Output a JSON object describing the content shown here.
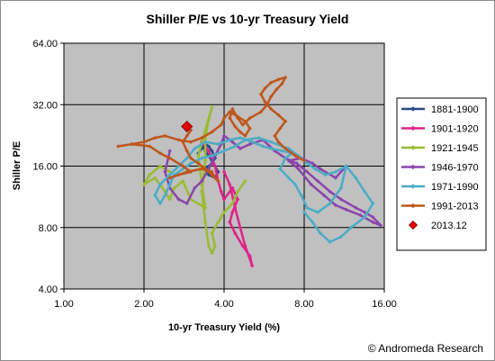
{
  "chart_data": {
    "type": "scatter",
    "title": "Shiller P/E vs 10-yr Treasury Yield",
    "xlabel": "10-yr Treasury Yield (%)",
    "ylabel": "Shiller P/E",
    "x_scale": "log2",
    "y_scale": "log2",
    "xlim": [
      1.0,
      16.0
    ],
    "ylim": [
      4.0,
      64.0
    ],
    "x_ticks": [
      "1.00",
      "2.00",
      "4.00",
      "8.00",
      "16.00"
    ],
    "y_ticks": [
      "4.00",
      "8.00",
      "16.00",
      "32.00",
      "64.00"
    ],
    "grid": true,
    "legend_position": "right",
    "credit": "© Andromeda Research",
    "series": [
      {
        "name": "1881-1900",
        "color": "#2a4a8a",
        "marker": "diamond",
        "points": [
          [
            3.2,
            18.5
          ],
          [
            3.3,
            19.5
          ],
          [
            3.4,
            20.5
          ],
          [
            3.5,
            20.0
          ],
          [
            3.6,
            19.0
          ],
          [
            3.7,
            17.5
          ],
          [
            3.6,
            16.5
          ],
          [
            3.4,
            15.5
          ],
          [
            3.5,
            14.5
          ],
          [
            3.7,
            14.0
          ],
          [
            3.8,
            15.0
          ],
          [
            3.6,
            17.0
          ],
          [
            3.4,
            19.0
          ],
          [
            3.3,
            21.0
          ]
        ]
      },
      {
        "name": "1901-1920",
        "color": "#e0218a",
        "marker": "diamond",
        "points": [
          [
            3.3,
            21.0
          ],
          [
            3.5,
            19.0
          ],
          [
            3.7,
            16.0
          ],
          [
            3.8,
            13.5
          ],
          [
            3.9,
            12.0
          ],
          [
            4.0,
            11.0
          ],
          [
            4.3,
            12.5
          ],
          [
            4.5,
            11.0
          ],
          [
            4.3,
            9.5
          ],
          [
            4.2,
            8.5
          ],
          [
            4.4,
            7.5
          ],
          [
            4.7,
            6.5
          ],
          [
            5.0,
            5.8
          ],
          [
            5.1,
            5.2
          ],
          [
            4.8,
            6.5
          ],
          [
            4.6,
            8.0
          ],
          [
            4.4,
            10.0
          ],
          [
            4.2,
            13.0
          ],
          [
            4.0,
            15.0
          ]
        ]
      },
      {
        "name": "1921-1945",
        "color": "#9bbb31",
        "marker": "diamond",
        "points": [
          [
            4.8,
            13.5
          ],
          [
            4.5,
            12.0
          ],
          [
            4.3,
            10.5
          ],
          [
            4.0,
            9.5
          ],
          [
            3.8,
            8.5
          ],
          [
            3.6,
            7.5
          ],
          [
            3.7,
            6.5
          ],
          [
            3.6,
            6.0
          ],
          [
            3.5,
            6.5
          ],
          [
            3.4,
            8.5
          ],
          [
            3.3,
            12.0
          ],
          [
            3.4,
            17.0
          ],
          [
            3.4,
            22.0
          ],
          [
            3.5,
            27.0
          ],
          [
            3.6,
            31.0
          ],
          [
            3.4,
            24.0
          ],
          [
            3.2,
            18.0
          ],
          [
            3.3,
            13.0
          ],
          [
            3.4,
            10.0
          ],
          [
            3.0,
            11.0
          ],
          [
            2.8,
            13.5
          ],
          [
            2.6,
            12.5
          ],
          [
            2.5,
            11.0
          ],
          [
            2.4,
            12.0
          ],
          [
            2.2,
            14.0
          ],
          [
            2.0,
            13.0
          ],
          [
            2.1,
            14.5
          ],
          [
            2.3,
            16.0
          ],
          [
            2.5,
            15.0
          ]
        ]
      },
      {
        "name": "1946-1970",
        "color": "#8b44ac",
        "marker": "diamond",
        "points": [
          [
            2.5,
            19.0
          ],
          [
            2.4,
            15.0
          ],
          [
            2.5,
            12.5
          ],
          [
            2.7,
            11.0
          ],
          [
            2.9,
            10.5
          ],
          [
            3.1,
            12.5
          ],
          [
            3.3,
            13.5
          ],
          [
            3.5,
            15.5
          ],
          [
            3.7,
            18.0
          ],
          [
            3.9,
            20.5
          ],
          [
            4.0,
            22.5
          ],
          [
            4.3,
            21.0
          ],
          [
            4.6,
            19.5
          ],
          [
            5.0,
            20.5
          ],
          [
            5.6,
            21.5
          ],
          [
            6.2,
            19.0
          ],
          [
            6.8,
            17.5
          ],
          [
            7.5,
            16.5
          ],
          [
            8.2,
            15.0
          ],
          [
            9.0,
            13.5
          ],
          [
            10.0,
            12.0
          ],
          [
            11.0,
            11.0
          ],
          [
            12.5,
            10.0
          ],
          [
            13.5,
            9.5
          ],
          [
            14.5,
            9.0
          ],
          [
            15.5,
            8.2
          ],
          [
            14.5,
            8.5
          ],
          [
            13.0,
            9.2
          ],
          [
            11.5,
            9.8
          ],
          [
            10.5,
            10.3
          ],
          [
            9.5,
            11.5
          ],
          [
            8.5,
            13.0
          ],
          [
            7.6,
            15.5
          ],
          [
            7.0,
            17.0
          ],
          [
            7.8,
            17.5
          ],
          [
            8.6,
            16.5
          ],
          [
            9.2,
            15.5
          ],
          [
            10.5,
            14.0
          ],
          [
            11.5,
            16.0
          ]
        ]
      },
      {
        "name": "1971-1990",
        "color": "#4bacc6",
        "marker": "diamond",
        "points": [
          [
            11.5,
            16.0
          ],
          [
            11.0,
            12.5
          ],
          [
            10.0,
            10.5
          ],
          [
            9.0,
            9.5
          ],
          [
            8.2,
            10.0
          ],
          [
            7.8,
            11.5
          ],
          [
            7.4,
            13.0
          ],
          [
            7.0,
            14.0
          ],
          [
            6.5,
            15.5
          ],
          [
            6.8,
            17.5
          ],
          [
            7.2,
            18.5
          ],
          [
            6.6,
            19.0
          ],
          [
            6.0,
            19.5
          ],
          [
            5.6,
            20.0
          ],
          [
            5.1,
            21.0
          ],
          [
            4.6,
            22.0
          ],
          [
            4.2,
            21.5
          ],
          [
            3.8,
            20.5
          ],
          [
            3.4,
            21.0
          ],
          [
            3.1,
            19.5
          ],
          [
            2.9,
            17.5
          ],
          [
            2.7,
            16.0
          ],
          [
            2.5,
            14.5
          ],
          [
            2.3,
            13.0
          ],
          [
            2.2,
            11.5
          ],
          [
            2.3,
            10.5
          ],
          [
            2.4,
            11.5
          ],
          [
            2.5,
            13.0
          ],
          [
            2.6,
            14.5
          ],
          [
            2.8,
            15.5
          ],
          [
            3.0,
            16.5
          ],
          [
            3.3,
            17.5
          ],
          [
            3.6,
            18.0
          ],
          [
            4.0,
            19.0
          ],
          [
            4.4,
            20.0
          ],
          [
            4.8,
            21.5
          ],
          [
            5.4,
            22.0
          ],
          [
            6.0,
            21.0
          ],
          [
            6.6,
            20.0
          ],
          [
            7.0,
            19.5
          ],
          [
            7.6,
            18.0
          ],
          [
            8.2,
            16.5
          ],
          [
            8.8,
            15.5
          ],
          [
            9.6,
            14.5
          ],
          [
            10.5,
            15.0
          ],
          [
            11.5,
            16.0
          ],
          [
            12.5,
            14.0
          ],
          [
            13.5,
            12.0
          ],
          [
            14.5,
            10.5
          ],
          [
            13.5,
            9.0
          ],
          [
            12.0,
            8.0
          ],
          [
            11.0,
            7.2
          ],
          [
            10.0,
            6.8
          ],
          [
            9.2,
            7.5
          ],
          [
            8.6,
            8.5
          ],
          [
            8.0,
            9.5
          ]
        ]
      },
      {
        "name": "1991-2013",
        "color": "#c0561a",
        "marker": "diamond",
        "points": [
          [
            8.0,
            17.0
          ],
          [
            7.4,
            18.0
          ],
          [
            6.8,
            19.5
          ],
          [
            6.4,
            21.0
          ],
          [
            6.2,
            22.5
          ],
          [
            6.5,
            24.5
          ],
          [
            6.8,
            26.5
          ],
          [
            6.4,
            28.5
          ],
          [
            6.0,
            30.5
          ],
          [
            5.7,
            33.0
          ],
          [
            5.5,
            36.0
          ],
          [
            5.7,
            38.5
          ],
          [
            6.0,
            41.0
          ],
          [
            6.4,
            42.5
          ],
          [
            6.8,
            43.5
          ],
          [
            6.6,
            40.5
          ],
          [
            6.3,
            38.0
          ],
          [
            6.0,
            35.0
          ],
          [
            5.8,
            32.0
          ],
          [
            5.5,
            29.5
          ],
          [
            5.0,
            27.5
          ],
          [
            4.7,
            25.5
          ],
          [
            4.5,
            27.5
          ],
          [
            4.3,
            30.5
          ],
          [
            4.2,
            27.5
          ],
          [
            4.4,
            25.0
          ],
          [
            4.6,
            23.5
          ],
          [
            4.8,
            22.5
          ],
          [
            5.0,
            24.5
          ],
          [
            4.8,
            26.5
          ],
          [
            4.5,
            28.0
          ],
          [
            4.2,
            29.5
          ],
          [
            4.0,
            27.5
          ],
          [
            3.9,
            25.5
          ],
          [
            3.6,
            23.5
          ],
          [
            3.3,
            22.0
          ],
          [
            3.0,
            21.0
          ],
          [
            2.7,
            21.5
          ],
          [
            2.4,
            22.5
          ],
          [
            2.2,
            22.0
          ],
          [
            2.0,
            21.0
          ],
          [
            1.8,
            20.5
          ],
          [
            1.6,
            20.0
          ],
          [
            1.8,
            20.5
          ],
          [
            2.1,
            20.0
          ],
          [
            2.3,
            18.5
          ],
          [
            2.5,
            17.5
          ],
          [
            2.8,
            16.0
          ],
          [
            3.0,
            15.0
          ],
          [
            2.7,
            14.5
          ],
          [
            2.5,
            14.0
          ],
          [
            2.9,
            15.0
          ],
          [
            3.3,
            15.5
          ],
          [
            3.6,
            15.0
          ],
          [
            3.7,
            14.0
          ],
          [
            3.8,
            13.5
          ],
          [
            3.6,
            14.5
          ],
          [
            3.4,
            15.5
          ],
          [
            3.2,
            16.5
          ],
          [
            3.0,
            17.5
          ],
          [
            2.9,
            19.0
          ],
          [
            2.8,
            21.0
          ],
          [
            2.9,
            22.5
          ],
          [
            3.0,
            24.0
          ]
        ]
      },
      {
        "name": "2013.12",
        "color": "#e00000",
        "marker": "big-diamond",
        "points": [
          [
            2.9,
            25.0
          ]
        ]
      }
    ]
  }
}
